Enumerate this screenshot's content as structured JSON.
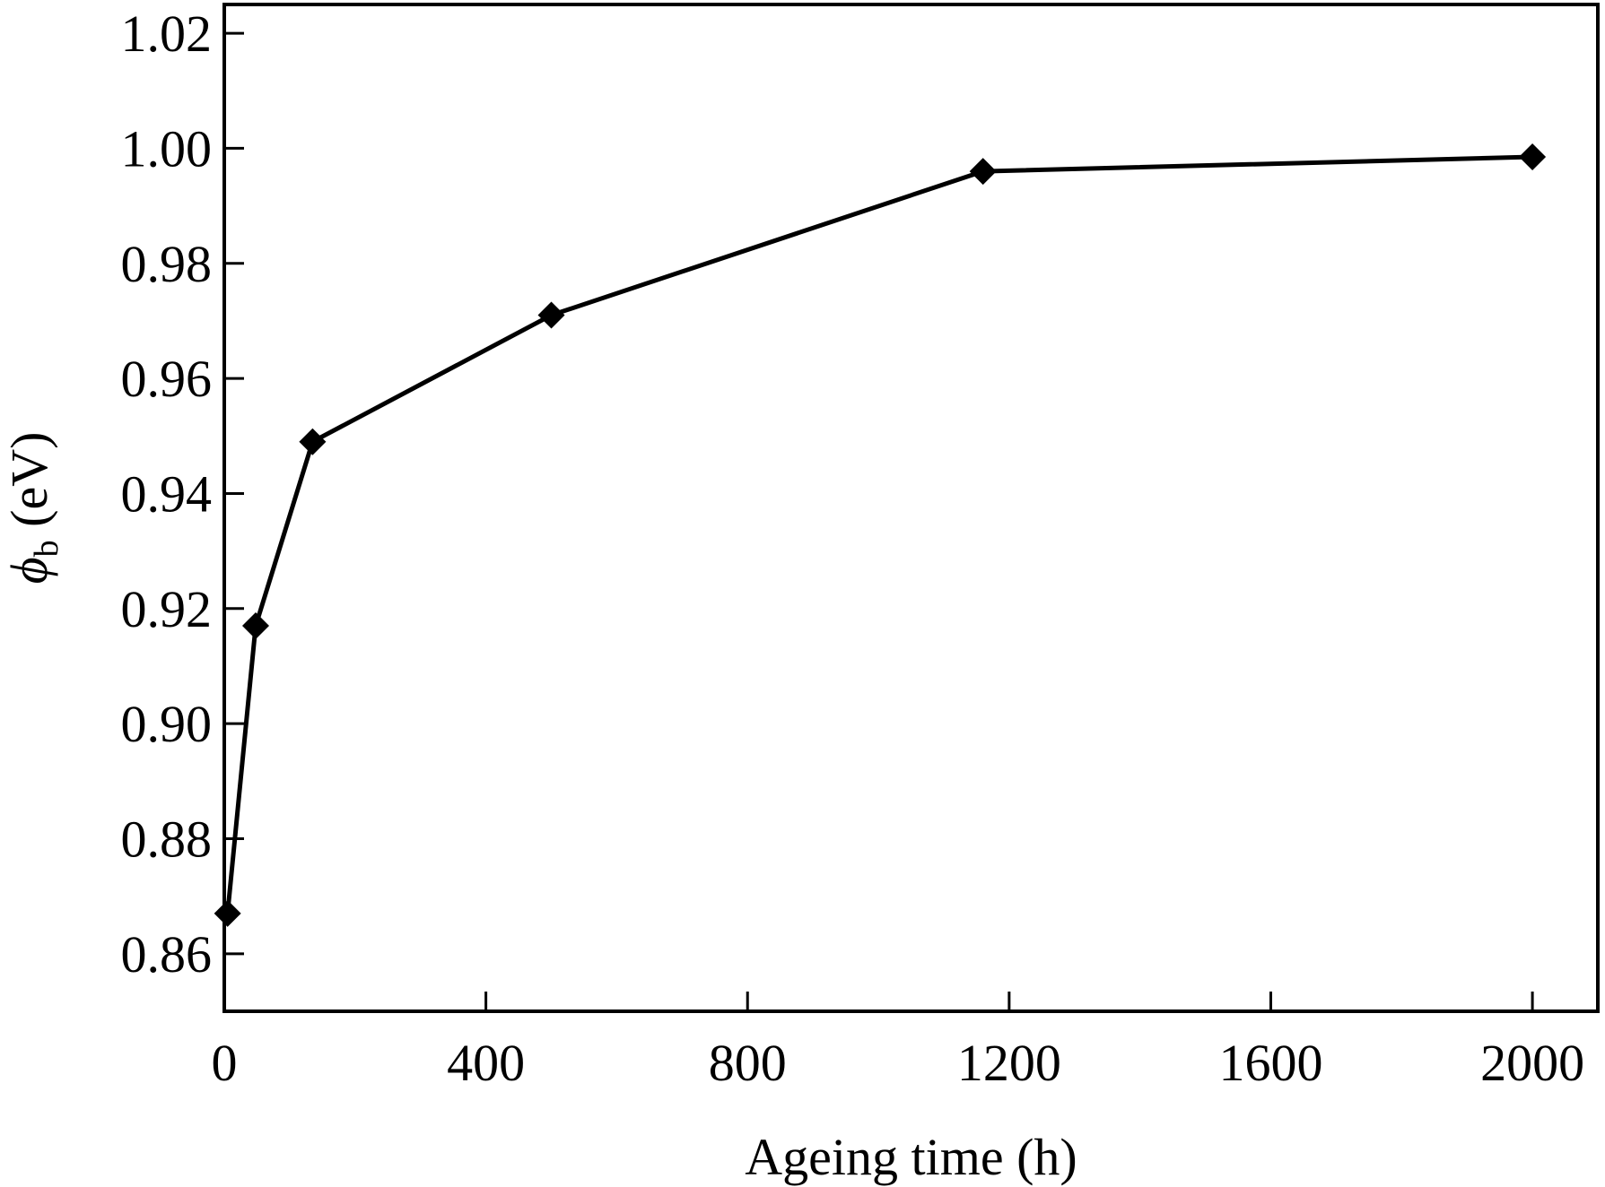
{
  "chart_data": {
    "type": "line",
    "title": "",
    "xlabel": "Ageing time (h)",
    "ylabel": {
      "symbol": "ϕ",
      "subscript": "b",
      "unit": "(eV)"
    },
    "xlim": [
      0,
      2100
    ],
    "ylim": [
      0.85,
      1.025
    ],
    "xticks": [
      0,
      400,
      800,
      1200,
      1600,
      2000
    ],
    "xtick_labels": [
      "0",
      "400",
      "800",
      "1200",
      "1600",
      "2000"
    ],
    "yticks": [
      0.86,
      0.88,
      0.9,
      0.92,
      0.94,
      0.96,
      0.98,
      1.0,
      1.02
    ],
    "ytick_labels": [
      "0.86",
      "0.88",
      "0.90",
      "0.92",
      "0.94",
      "0.96",
      "0.98",
      "1.00",
      "1.02"
    ],
    "grid": false,
    "marker": "diamond",
    "color": "#000000",
    "series": [
      {
        "x": [
          5,
          48,
          135,
          500,
          1160,
          2000
        ],
        "y": [
          0.867,
          0.917,
          0.949,
          0.971,
          0.996,
          0.9985
        ]
      }
    ]
  }
}
